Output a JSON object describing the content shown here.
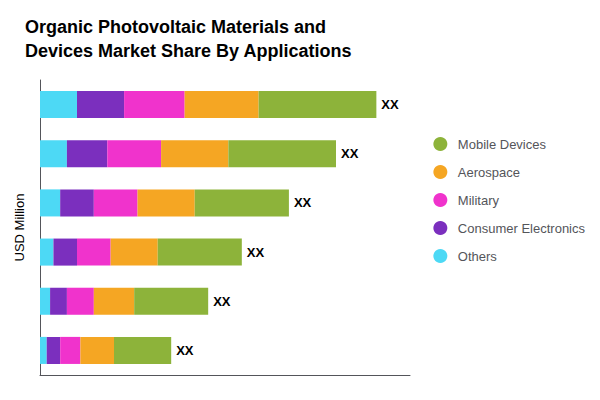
{
  "chart_data": {
    "type": "bar",
    "orientation": "horizontal",
    "stacked": true,
    "title": "Organic Photovoltaic Materials and\nDevices Market Share By Applications",
    "ylabel": "USD Million",
    "categories": [
      null,
      null,
      null,
      null,
      null,
      null
    ],
    "series": [
      {
        "name": "Mobile Devices",
        "color": "#8db33a",
        "values": [
          35,
          32,
          28,
          25,
          22,
          17
        ]
      },
      {
        "name": "Aerospace",
        "color": "#f5a623",
        "values": [
          22,
          20,
          17,
          14,
          12,
          10
        ]
      },
      {
        "name": "Military",
        "color": "#f033cc",
        "values": [
          18,
          16,
          13,
          10,
          8,
          6
        ]
      },
      {
        "name": "Consumer Electronics",
        "color": "#7b2fbe",
        "values": [
          14,
          12,
          10,
          7,
          5,
          4
        ]
      },
      {
        "name": "Others",
        "color": "#4dd9f5",
        "values": [
          11,
          8,
          6,
          4,
          3,
          2
        ]
      }
    ],
    "xlim": [
      0,
      110
    ],
    "tick_labels": false,
    "grid": false,
    "legend": "right",
    "annotations": [
      "XX",
      "XX",
      "XX",
      "XX",
      "XX",
      "XX"
    ]
  }
}
